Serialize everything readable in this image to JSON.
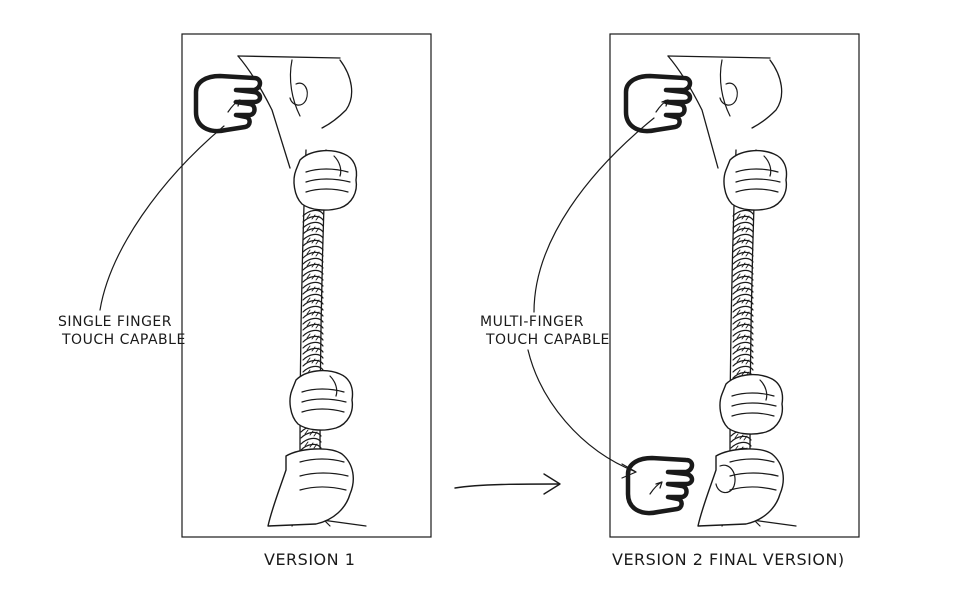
{
  "panels": [
    {
      "caption": "VERSION 1"
    },
    {
      "caption": "VERSION 2   FINAL VERSION)"
    }
  ],
  "annotations": {
    "single": {
      "line1": "SINGLE FINGER",
      "line2": "TOUCH CAPABLE"
    },
    "multi": {
      "line1": "MULTI-FINGER",
      "line2": "TOUCH CAPABLE"
    }
  },
  "colors": {
    "ink": "#1a1a1a",
    "paper": "#ffffff"
  }
}
